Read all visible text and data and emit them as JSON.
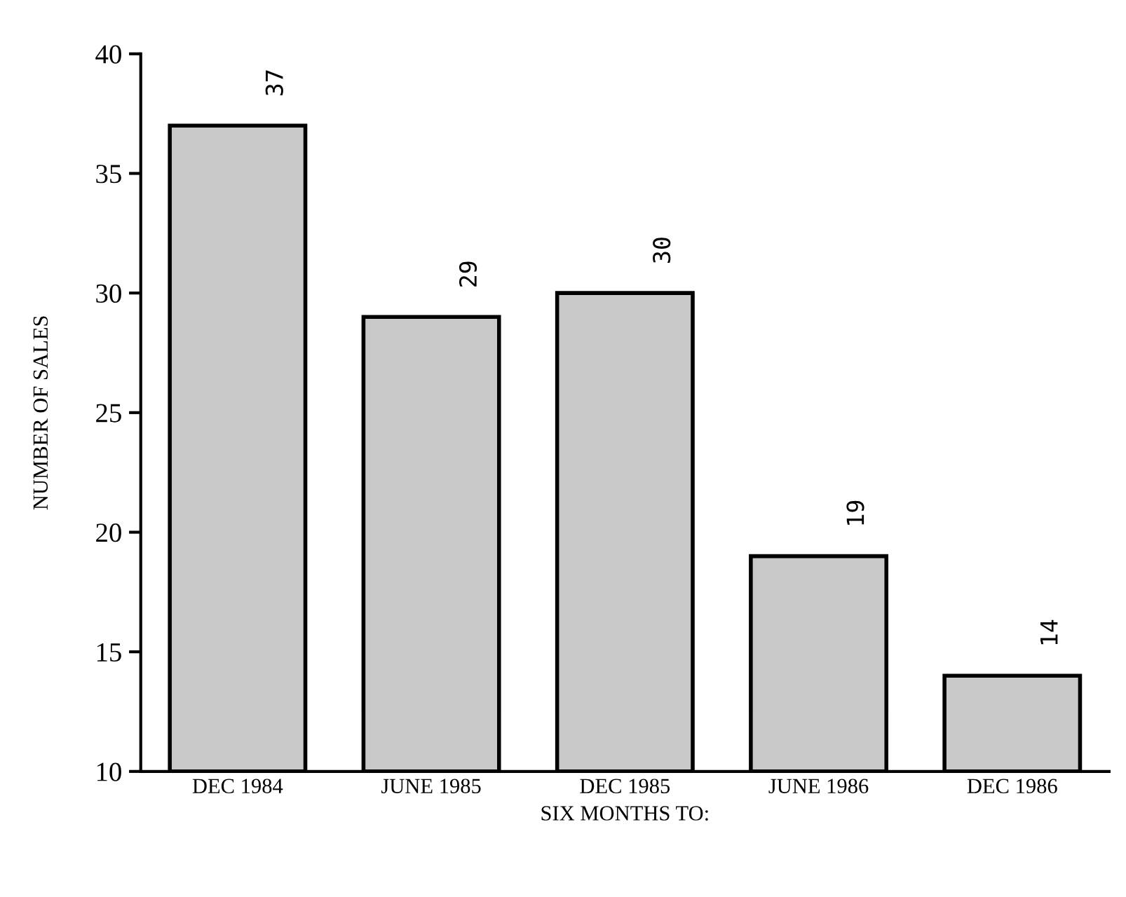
{
  "chart_data": {
    "type": "bar",
    "xlabel": "SIX MONTHS TO:",
    "ylabel": "NUMBER OF SALES",
    "categories": [
      "DEC 1984",
      "JUNE 1985",
      "DEC 1985",
      "JUNE 1986",
      "DEC 1986"
    ],
    "values": [
      37,
      29,
      30,
      19,
      14
    ],
    "color": "#c8c8c8",
    "ylim": [
      10,
      40
    ],
    "yticks": [
      10,
      15,
      20,
      25,
      30,
      35,
      40
    ],
    "grid": false,
    "data_labels": true
  }
}
